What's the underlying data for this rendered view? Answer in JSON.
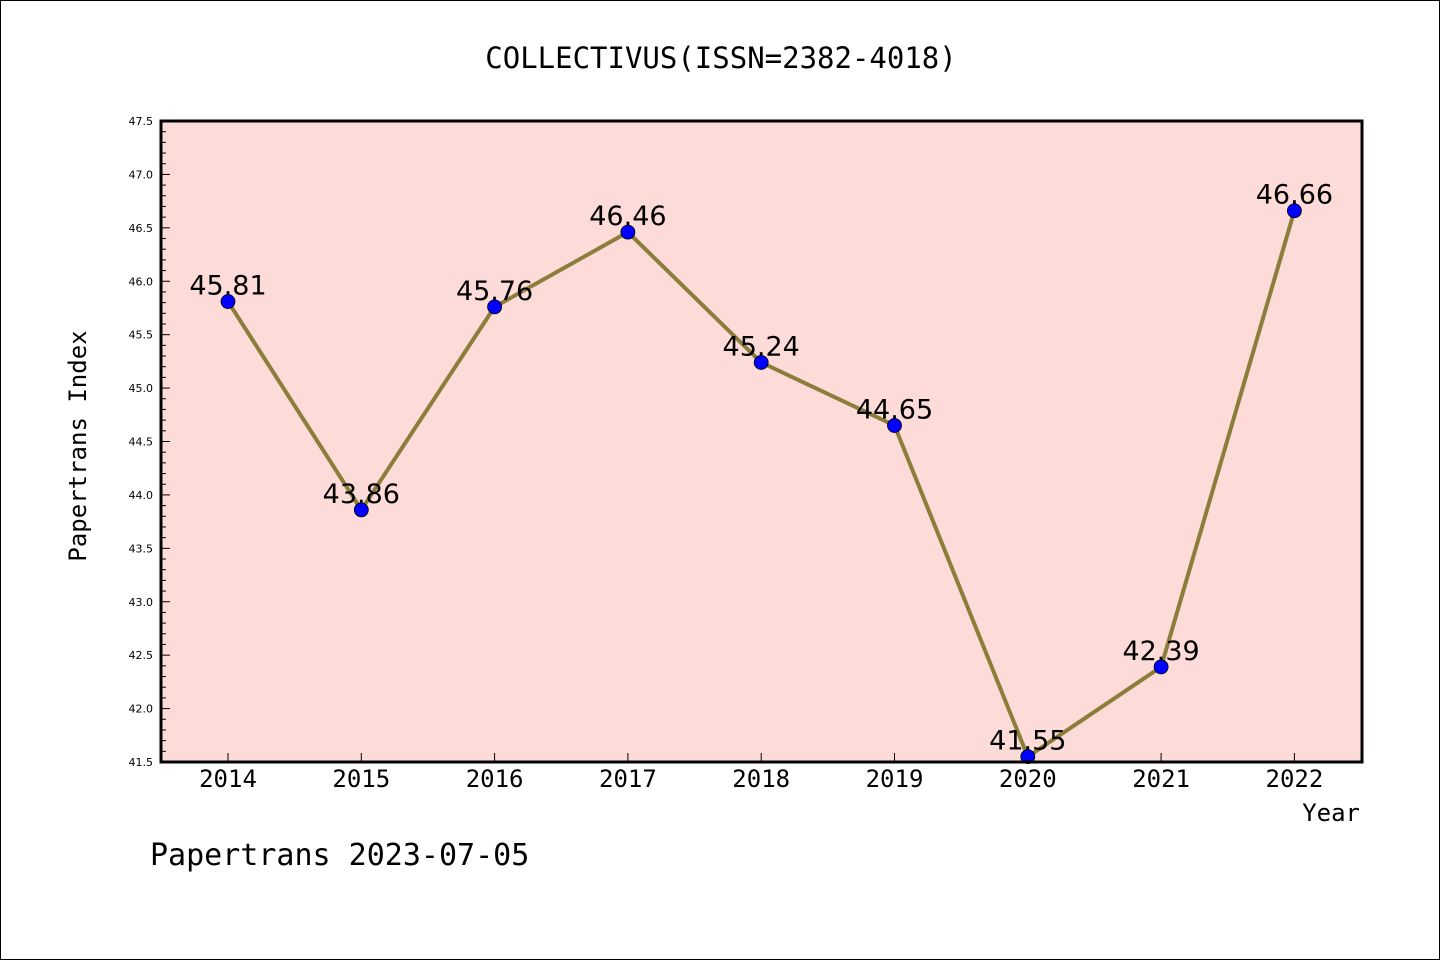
{
  "chart_data": {
    "type": "line",
    "title": "COLLECTIVUS(ISSN=2382-4018)",
    "xlabel": "Year",
    "ylabel": "Papertrans Index",
    "categories": [
      "2014",
      "2015",
      "2016",
      "2017",
      "2018",
      "2019",
      "2020",
      "2021",
      "2022"
    ],
    "series": [
      {
        "values": [
          45.81,
          43.86,
          45.76,
          46.46,
          45.24,
          44.65,
          41.55,
          42.39,
          46.66
        ],
        "labels": [
          "45.81",
          "43.86",
          "45.76",
          "46.46",
          "45.24",
          "44.65",
          "41.55",
          "42.39",
          "46.66"
        ]
      }
    ],
    "ylim": [
      41.5,
      47.5
    ],
    "yticks": [
      "41.5",
      "42.0",
      "42.5",
      "43.0",
      "43.5",
      "44.0",
      "44.5",
      "45.0",
      "45.5",
      "46.0",
      "46.5",
      "47.0",
      "47.5"
    ],
    "grid": false,
    "legend": "none",
    "colors": {
      "plot_background": "#fddbd8",
      "line": "#8b7d3a",
      "marker": "#0000ff"
    }
  },
  "footer": {
    "text": "Papertrans 2023-07-05"
  }
}
